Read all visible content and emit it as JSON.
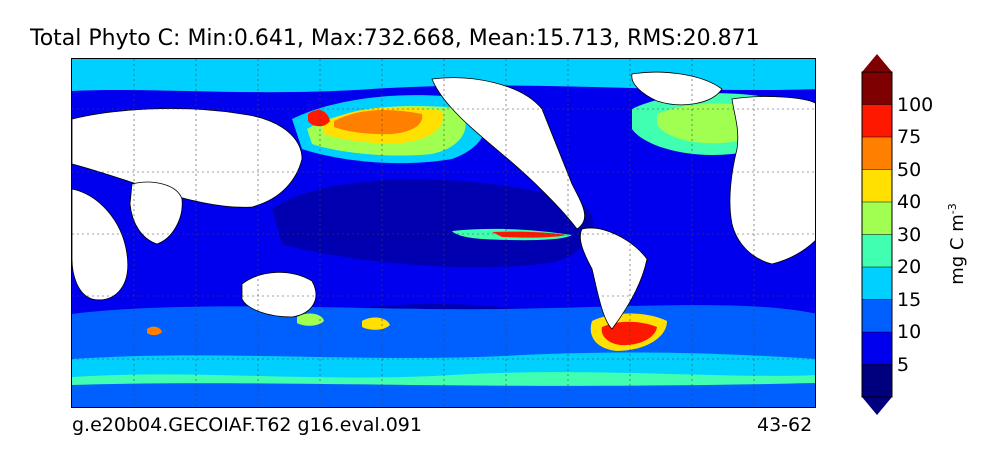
{
  "title": "Total Phyto C: Min:0.641, Max:732.668, Mean:15.713, RMS:20.871",
  "footer": {
    "left": "g.e20b04.GECOIAF.T62 g16.eval.091",
    "right": "43-62"
  },
  "colorbar": {
    "unit_label": "mg C m",
    "unit_exponent": "-3",
    "ticks": [
      "5",
      "10",
      "15",
      "20",
      "30",
      "40",
      "50",
      "75",
      "100"
    ],
    "colors": [
      "#00007f",
      "#0000ee",
      "#0060ff",
      "#00d0ff",
      "#40ffb0",
      "#a0ff50",
      "#ffe000",
      "#ff8000",
      "#ff1800",
      "#7f0000"
    ]
  },
  "map": {
    "type": "filled-contour-map",
    "variable": "Total Phyto C",
    "projection": "global-cylindrical",
    "grid": true,
    "land_color": "#ffffff"
  }
}
